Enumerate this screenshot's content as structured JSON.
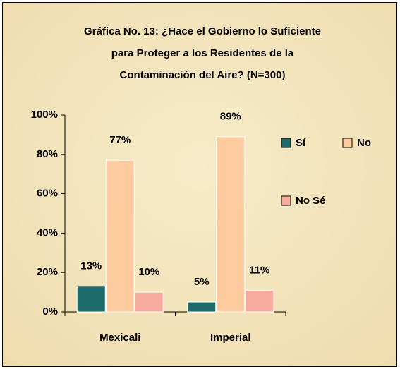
{
  "chart_data": {
    "type": "bar",
    "title": [
      "Gráfica No. 13:  ¿Hace el Gobierno lo Suficiente",
      "para Proteger a los Residentes de la",
      "Contaminación del Aire?   (N=300)"
    ],
    "categories": [
      "Mexicali",
      "Imperial"
    ],
    "series": [
      {
        "name": "Sí",
        "color": "#1d6b6b",
        "values": [
          13,
          5
        ],
        "value_labels": [
          "13%",
          "5%"
        ]
      },
      {
        "name": "No",
        "color": "#fdcb9e",
        "values": [
          77,
          89
        ],
        "value_labels": [
          "77%",
          "89%"
        ]
      },
      {
        "name": "No Sé",
        "color": "#f7aa9e",
        "values": [
          10,
          11
        ],
        "value_labels": [
          "10%",
          "11%"
        ]
      }
    ],
    "ylim": [
      0,
      100
    ],
    "yticks": [
      {
        "value": 0,
        "label": "0%"
      },
      {
        "value": 20,
        "label": "20%"
      },
      {
        "value": 40,
        "label": "40%"
      },
      {
        "value": 60,
        "label": "60%"
      },
      {
        "value": 80,
        "label": "80%"
      },
      {
        "value": 100,
        "label": "100%"
      }
    ]
  }
}
